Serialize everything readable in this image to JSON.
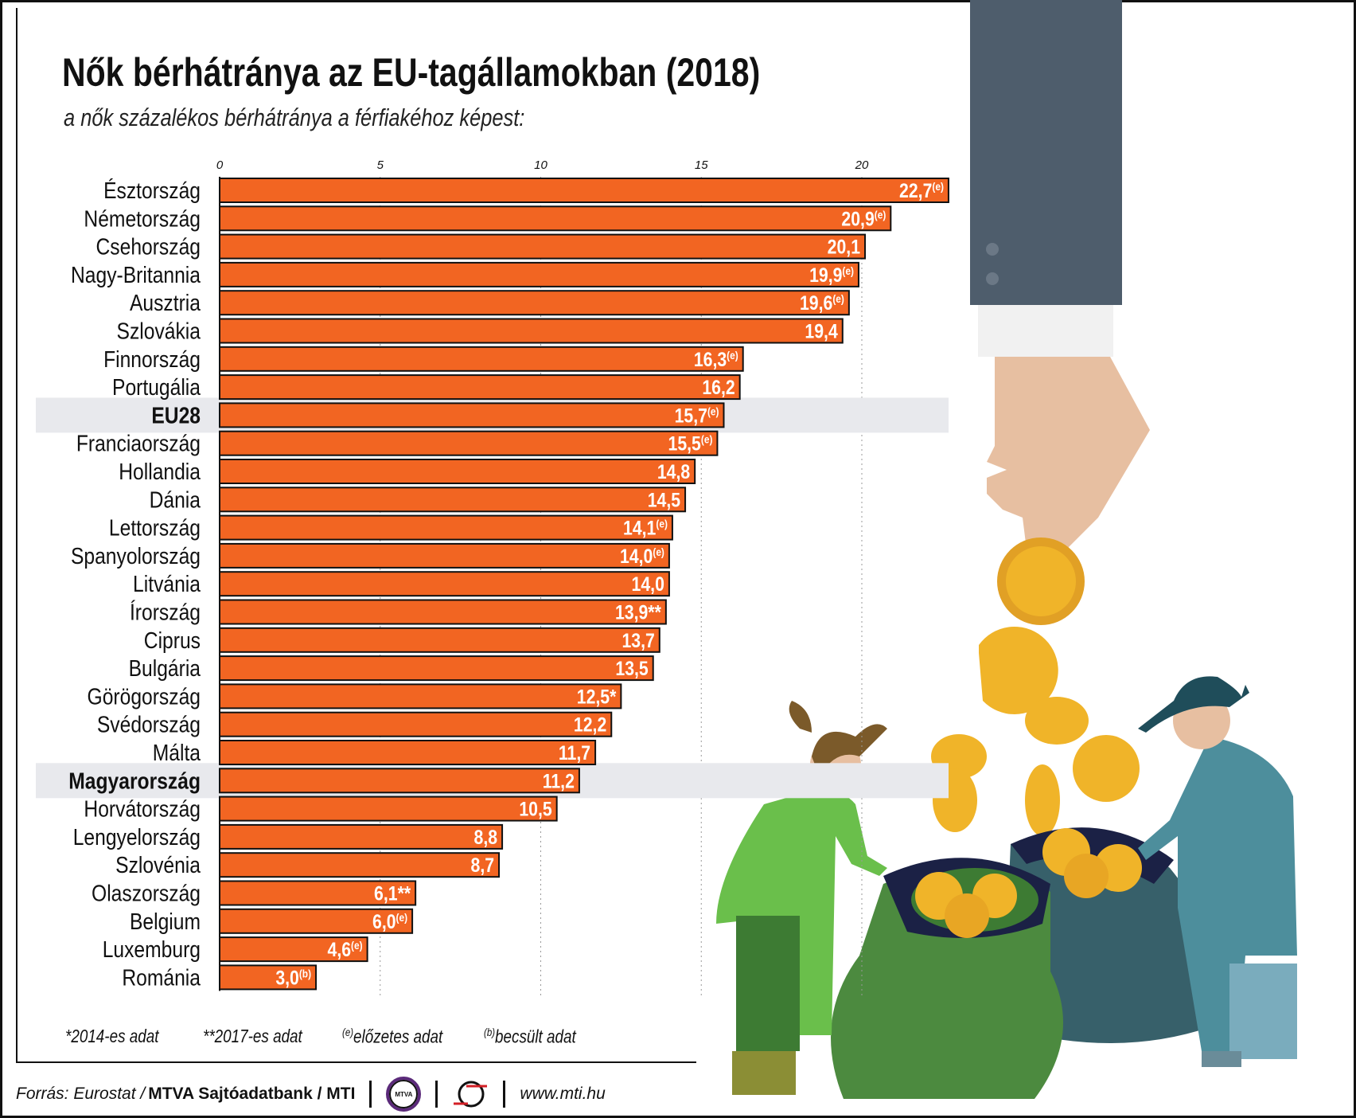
{
  "header": {
    "title": "Nők bérhátránya az EU-tagállamokban (2018)",
    "subtitle": "a nők százalékos bérhátránya a férfiakéhoz képest:"
  },
  "chart_data": {
    "type": "bar",
    "orientation": "horizontal",
    "xlim": [
      0,
      23
    ],
    "ticks": [
      0,
      5,
      10,
      15,
      20
    ],
    "grid": true,
    "bar_color": "#f26522",
    "highlight_color": "#e8e9ed",
    "categories": [
      "Észtország",
      "Németország",
      "Csehország",
      "Nagy-Britannia",
      "Ausztria",
      "Szlovákia",
      "Finnország",
      "Portugália",
      "EU28",
      "Franciaország",
      "Hollandia",
      "Dánia",
      "Lettország",
      "Spanyolország",
      "Litvánia",
      "Írország",
      "Ciprus",
      "Bulgária",
      "Görögország",
      "Svédország",
      "Málta",
      "Magyarország",
      "Horvátország",
      "Lengyelország",
      "Szlovénia",
      "Olaszország",
      "Belgium",
      "Luxemburg",
      "Románia"
    ],
    "values": [
      22.7,
      20.9,
      20.1,
      19.9,
      19.6,
      19.4,
      16.3,
      16.2,
      15.7,
      15.5,
      14.8,
      14.5,
      14.1,
      14.0,
      14.0,
      13.9,
      13.7,
      13.5,
      12.5,
      12.2,
      11.7,
      11.2,
      10.5,
      8.8,
      8.7,
      6.1,
      6.0,
      4.6,
      3.0
    ],
    "labels": [
      "22,7",
      "20,9",
      "20,1",
      "19,9",
      "19,6",
      "19,4",
      "16,3",
      "16,2",
      "15,7",
      "15,5",
      "14,8",
      "14,5",
      "14,1",
      "14,0",
      "14,0",
      "13,9",
      "13,7",
      "13,5",
      "12,5",
      "12,2",
      "11,7",
      "11,2",
      "10,5",
      "8,8",
      "8,7",
      "6,1",
      "6,0",
      "4,6",
      "3,0"
    ],
    "notes": [
      "(e)",
      "(e)",
      "",
      "(e)",
      "(e)",
      "",
      "(e)",
      "",
      "(e)",
      "(e)",
      "",
      "",
      "(e)",
      "(e)",
      "",
      "**",
      "",
      "",
      "*",
      "",
      "",
      "",
      "",
      "",
      "",
      "**",
      "(e)",
      "(e)",
      "(b)"
    ],
    "highlighted": [
      "EU28",
      "Magyarország"
    ]
  },
  "legend": {
    "n1": "*2014-es adat",
    "n2": "**2017-es adat",
    "n3_sup": "(e)",
    "n3": "előzetes adat",
    "n4_sup": "(b)",
    "n4": "becsült adat"
  },
  "footer": {
    "source_prefix": "Forrás: Eurostat / ",
    "source_bold": "MTVA Sajtóadatbank / MTI",
    "logo1": "MTVA",
    "url": "www.mti.hu"
  }
}
